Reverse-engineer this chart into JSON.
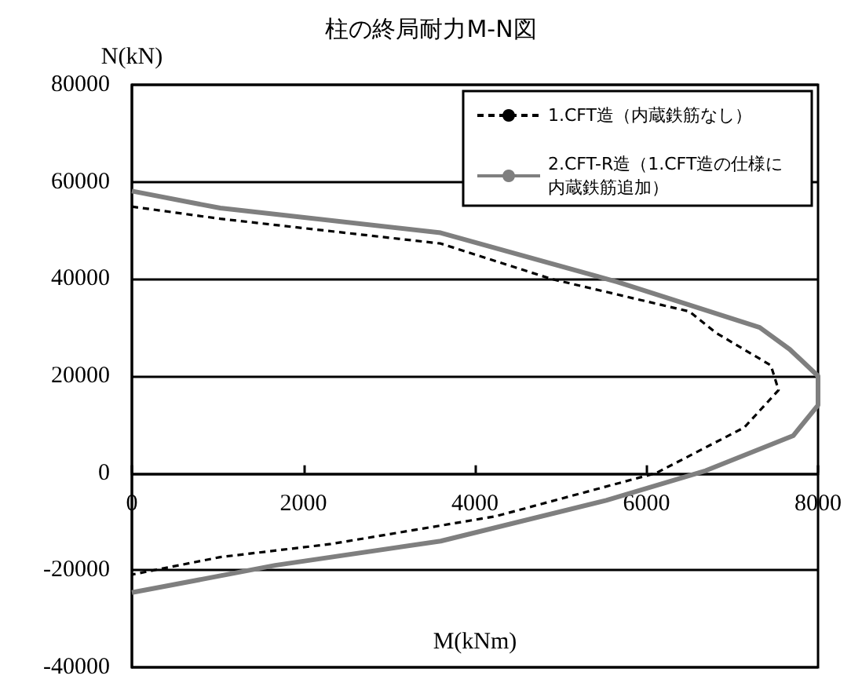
{
  "chart_data": {
    "type": "line",
    "title": "柱の終局耐力M-N図",
    "xlabel": "M(kNm)",
    "ylabel": "N(kN)",
    "xlim": [
      0,
      8000
    ],
    "xticks": [
      0,
      2000,
      4000,
      6000,
      8000
    ],
    "ylim": [
      -40000,
      80000
    ],
    "yticks": [
      -40000,
      -20000,
      0,
      20000,
      40000,
      60000,
      80000
    ],
    "grid": "y",
    "legend": "top right",
    "marker": "none",
    "series": [
      {
        "name": "1.CFT造（内蔵鉄筋なし）",
        "color": "#000000",
        "line_style": "dashed",
        "x": [
          0,
          1030,
          3600,
          4890,
          6500,
          6810,
          7450,
          7540,
          7140,
          6110,
          4240,
          2320,
          1030,
          0
        ],
        "values": [
          54900,
          52400,
          47300,
          40000,
          33300,
          28900,
          22200,
          17100,
          9400,
          0,
          -8900,
          -14600,
          -17300,
          -20900
        ]
      },
      {
        "name": "2.CFT-R造（1.CFT造の仕様に内蔵鉄筋追加）",
        "color": "#7f7f7f",
        "line_style": "solid",
        "x": [
          0,
          1030,
          3600,
          5660,
          7320,
          7670,
          8000,
          8000,
          7710,
          6690,
          5530,
          3600,
          1670,
          0
        ],
        "values": [
          58100,
          54600,
          49500,
          39400,
          30000,
          25500,
          20000,
          14000,
          7700,
          500,
          -5600,
          -14000,
          -19000,
          -24600
        ]
      }
    ]
  }
}
